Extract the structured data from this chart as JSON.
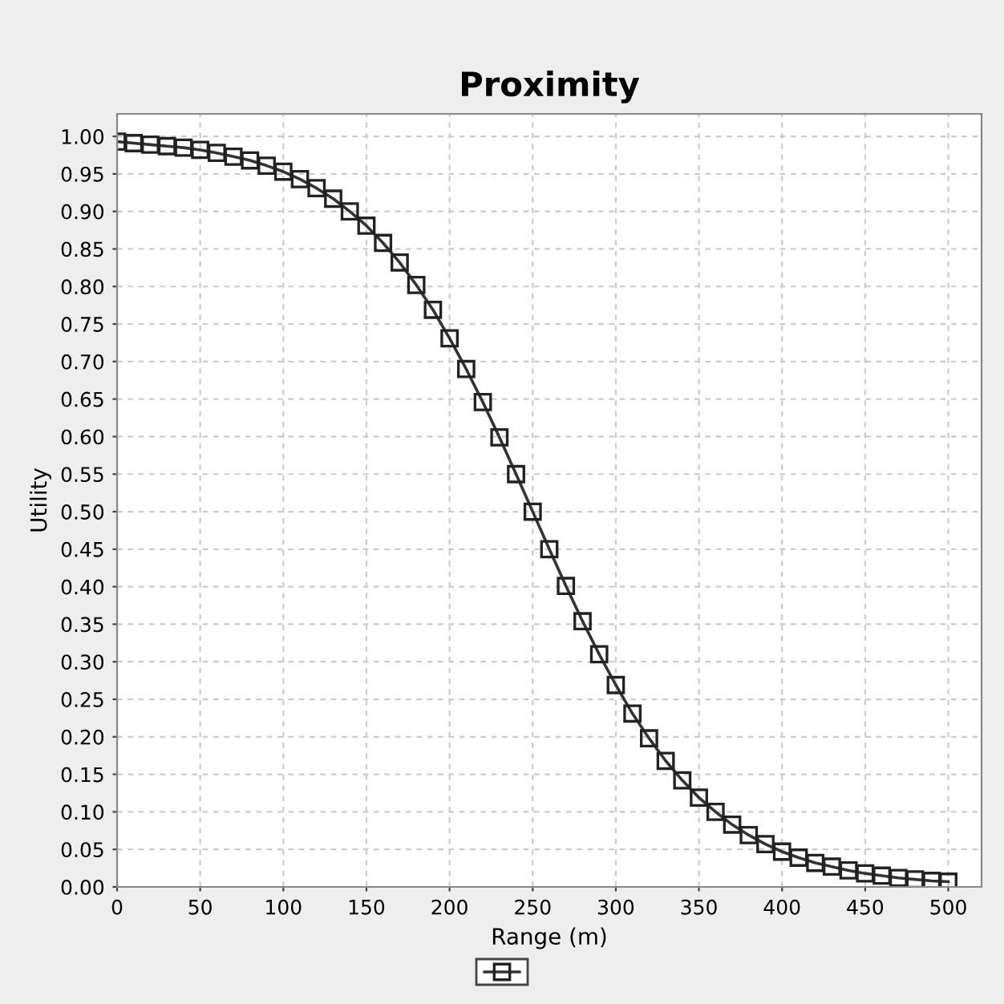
{
  "chart_data": {
    "type": "line",
    "title": "Proximity",
    "xlabel": "Range (m)",
    "ylabel": "Utility",
    "x": [
      0,
      10,
      20,
      30,
      40,
      50,
      60,
      70,
      80,
      90,
      100,
      110,
      120,
      130,
      140,
      150,
      160,
      170,
      180,
      190,
      200,
      210,
      220,
      230,
      240,
      250,
      260,
      270,
      280,
      290,
      300,
      310,
      320,
      330,
      340,
      350,
      360,
      370,
      380,
      390,
      400,
      410,
      420,
      430,
      440,
      450,
      460,
      470,
      480,
      490,
      500
    ],
    "series": [
      {
        "color": "#333333",
        "values": [
          0.993,
          0.991,
          0.989,
          0.987,
          0.985,
          0.982,
          0.978,
          0.973,
          0.968,
          0.961,
          0.953,
          0.943,
          0.931,
          0.917,
          0.9,
          0.881,
          0.858,
          0.832,
          0.802,
          0.769,
          0.731,
          0.69,
          0.646,
          0.599,
          0.55,
          0.5,
          0.45,
          0.401,
          0.354,
          0.31,
          0.269,
          0.231,
          0.198,
          0.168,
          0.142,
          0.119,
          0.1,
          0.083,
          0.069,
          0.057,
          0.047,
          0.039,
          0.032,
          0.027,
          0.022,
          0.018,
          0.015,
          0.012,
          0.01,
          0.008,
          0.007
        ]
      }
    ],
    "xlim": [
      0,
      520
    ],
    "xticks": [
      0,
      50,
      100,
      150,
      200,
      250,
      300,
      350,
      400,
      450,
      500
    ],
    "ylim": [
      0,
      1.03
    ],
    "yticks": [
      {
        "value": 0,
        "label": "0.00"
      },
      {
        "value": 0.05,
        "label": "0.05"
      },
      {
        "value": 0.1,
        "label": "0.10"
      },
      {
        "value": 0.15,
        "label": "0.15"
      },
      {
        "value": 0.2,
        "label": "0.20"
      },
      {
        "value": 0.25,
        "label": "0.25"
      },
      {
        "value": 0.3,
        "label": "0.30"
      },
      {
        "value": 0.35,
        "label": "0.35"
      },
      {
        "value": 0.4,
        "label": "0.40"
      },
      {
        "value": 0.45,
        "label": "0.45"
      },
      {
        "value": 0.5,
        "label": "0.50"
      },
      {
        "value": 0.55,
        "label": "0.55"
      },
      {
        "value": 0.6,
        "label": "0.60"
      },
      {
        "value": 0.65,
        "label": "0.65"
      },
      {
        "value": 0.7,
        "label": "0.70"
      },
      {
        "value": 0.75,
        "label": "0.75"
      },
      {
        "value": 0.8,
        "label": "0.80"
      },
      {
        "value": 0.85,
        "label": "0.85"
      },
      {
        "value": 0.9,
        "label": "0.90"
      },
      {
        "value": 0.95,
        "label": "0.95"
      },
      {
        "value": 1.0,
        "label": "1.00"
      }
    ],
    "grid": true,
    "marker": "square",
    "line_style": "solid"
  }
}
